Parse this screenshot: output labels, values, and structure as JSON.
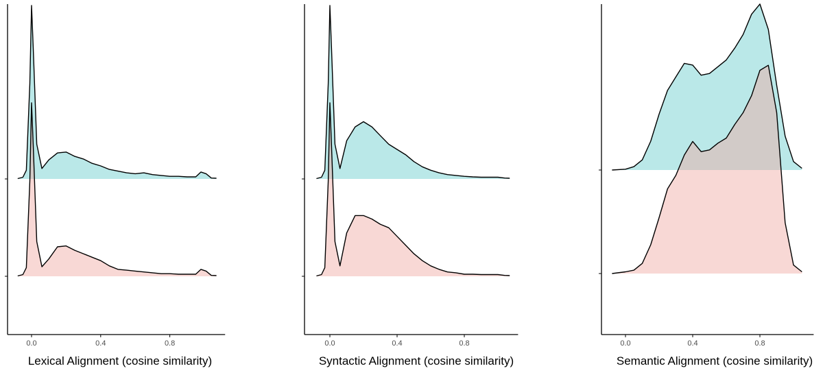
{
  "colors": {
    "top_ridge": "#66CCCC",
    "bottom_ridge": "#F0A8A2",
    "fill_opacity": 0.45
  },
  "chart_data": [
    {
      "type": "area",
      "subtype": "ridgeline-density",
      "xlabel": "Lexical Alignment (cosine similarity)",
      "xticks": [
        0.0,
        0.4,
        0.8
      ],
      "xtick_labels": [
        "0.0",
        "0.4",
        "0.8"
      ],
      "xlim": [
        -0.14,
        1.12
      ],
      "y_tick_labels": [
        "",
        ""
      ],
      "grid": false,
      "legend": "none",
      "series": [
        {
          "color": "#66CCCC",
          "points": [
            [
              -0.08,
              0.002
            ],
            [
              -0.05,
              0.01
            ],
            [
              -0.03,
              0.05
            ],
            [
              -0.01,
              0.55
            ],
            [
              0.0,
              1.0
            ],
            [
              0.01,
              0.75
            ],
            [
              0.03,
              0.2
            ],
            [
              0.06,
              0.06
            ],
            [
              0.1,
              0.11
            ],
            [
              0.15,
              0.15
            ],
            [
              0.2,
              0.155
            ],
            [
              0.25,
              0.13
            ],
            [
              0.3,
              0.115
            ],
            [
              0.35,
              0.09
            ],
            [
              0.4,
              0.075
            ],
            [
              0.45,
              0.055
            ],
            [
              0.5,
              0.045
            ],
            [
              0.55,
              0.035
            ],
            [
              0.6,
              0.03
            ],
            [
              0.65,
              0.035
            ],
            [
              0.7,
              0.025
            ],
            [
              0.75,
              0.02
            ],
            [
              0.8,
              0.015
            ],
            [
              0.85,
              0.015
            ],
            [
              0.9,
              0.012
            ],
            [
              0.95,
              0.012
            ],
            [
              0.98,
              0.04
            ],
            [
              1.01,
              0.03
            ],
            [
              1.04,
              0.005
            ],
            [
              1.07,
              0.004
            ]
          ]
        },
        {
          "color": "#F0A8A2",
          "points": [
            [
              -0.08,
              0.002
            ],
            [
              -0.05,
              0.01
            ],
            [
              -0.03,
              0.05
            ],
            [
              -0.01,
              0.55
            ],
            [
              0.0,
              1.0
            ],
            [
              0.01,
              0.75
            ],
            [
              0.03,
              0.2
            ],
            [
              0.06,
              0.055
            ],
            [
              0.1,
              0.1
            ],
            [
              0.15,
              0.17
            ],
            [
              0.2,
              0.175
            ],
            [
              0.25,
              0.15
            ],
            [
              0.3,
              0.13
            ],
            [
              0.35,
              0.11
            ],
            [
              0.4,
              0.09
            ],
            [
              0.45,
              0.06
            ],
            [
              0.5,
              0.04
            ],
            [
              0.55,
              0.035
            ],
            [
              0.6,
              0.03
            ],
            [
              0.65,
              0.025
            ],
            [
              0.7,
              0.02
            ],
            [
              0.75,
              0.015
            ],
            [
              0.8,
              0.015
            ],
            [
              0.85,
              0.012
            ],
            [
              0.9,
              0.012
            ],
            [
              0.95,
              0.012
            ],
            [
              0.98,
              0.04
            ],
            [
              1.01,
              0.03
            ],
            [
              1.04,
              0.005
            ],
            [
              1.07,
              0.004
            ]
          ]
        }
      ]
    },
    {
      "type": "area",
      "subtype": "ridgeline-density",
      "xlabel": "Syntactic Alignment (cosine similarity)",
      "xticks": [
        0.0,
        0.4,
        0.8
      ],
      "xtick_labels": [
        "0.0",
        "0.4",
        "0.8"
      ],
      "xlim": [
        -0.14,
        1.12
      ],
      "y_tick_labels": [
        "",
        ""
      ],
      "grid": false,
      "legend": "none",
      "series": [
        {
          "color": "#66CCCC",
          "points": [
            [
              -0.08,
              0.002
            ],
            [
              -0.05,
              0.01
            ],
            [
              -0.03,
              0.05
            ],
            [
              -0.01,
              0.55
            ],
            [
              0.0,
              1.0
            ],
            [
              0.01,
              0.75
            ],
            [
              0.03,
              0.2
            ],
            [
              0.06,
              0.06
            ],
            [
              0.1,
              0.22
            ],
            [
              0.15,
              0.3
            ],
            [
              0.2,
              0.33
            ],
            [
              0.25,
              0.3
            ],
            [
              0.3,
              0.25
            ],
            [
              0.35,
              0.2
            ],
            [
              0.4,
              0.17
            ],
            [
              0.45,
              0.14
            ],
            [
              0.5,
              0.1
            ],
            [
              0.55,
              0.07
            ],
            [
              0.6,
              0.05
            ],
            [
              0.65,
              0.035
            ],
            [
              0.7,
              0.025
            ],
            [
              0.75,
              0.02
            ],
            [
              0.8,
              0.015
            ],
            [
              0.85,
              0.012
            ],
            [
              0.9,
              0.01
            ],
            [
              0.95,
              0.01
            ],
            [
              1.0,
              0.01
            ],
            [
              1.04,
              0.005
            ],
            [
              1.07,
              0.004
            ]
          ]
        },
        {
          "color": "#F0A8A2",
          "points": [
            [
              -0.08,
              0.002
            ],
            [
              -0.05,
              0.01
            ],
            [
              -0.03,
              0.05
            ],
            [
              -0.01,
              0.55
            ],
            [
              0.0,
              1.0
            ],
            [
              0.01,
              0.75
            ],
            [
              0.03,
              0.2
            ],
            [
              0.06,
              0.06
            ],
            [
              0.1,
              0.25
            ],
            [
              0.15,
              0.35
            ],
            [
              0.2,
              0.35
            ],
            [
              0.25,
              0.33
            ],
            [
              0.3,
              0.3
            ],
            [
              0.35,
              0.28
            ],
            [
              0.4,
              0.23
            ],
            [
              0.45,
              0.18
            ],
            [
              0.5,
              0.13
            ],
            [
              0.55,
              0.09
            ],
            [
              0.6,
              0.06
            ],
            [
              0.65,
              0.04
            ],
            [
              0.7,
              0.025
            ],
            [
              0.75,
              0.02
            ],
            [
              0.8,
              0.012
            ],
            [
              0.85,
              0.012
            ],
            [
              0.9,
              0.01
            ],
            [
              0.95,
              0.01
            ],
            [
              1.0,
              0.01
            ],
            [
              1.04,
              0.005
            ],
            [
              1.07,
              0.004
            ]
          ]
        }
      ]
    },
    {
      "type": "area",
      "subtype": "ridgeline-density",
      "xlabel": "Semantic Alignment (cosine similarity)",
      "xticks": [
        0.0,
        0.4,
        0.8
      ],
      "xtick_labels": [
        "0.0",
        "0.4",
        "0.8"
      ],
      "xlim": [
        -0.14,
        1.12
      ],
      "y_tick_labels": [
        "",
        ""
      ],
      "grid": false,
      "legend": "none",
      "series": [
        {
          "color": "#66CCCC",
          "points": [
            [
              -0.08,
              0.0
            ],
            [
              0.0,
              0.005
            ],
            [
              0.05,
              0.02
            ],
            [
              0.1,
              0.06
            ],
            [
              0.15,
              0.17
            ],
            [
              0.2,
              0.33
            ],
            [
              0.25,
              0.47
            ],
            [
              0.3,
              0.55
            ],
            [
              0.35,
              0.63
            ],
            [
              0.4,
              0.62
            ],
            [
              0.45,
              0.56
            ],
            [
              0.5,
              0.57
            ],
            [
              0.55,
              0.61
            ],
            [
              0.6,
              0.65
            ],
            [
              0.65,
              0.72
            ],
            [
              0.7,
              0.8
            ],
            [
              0.75,
              0.92
            ],
            [
              0.8,
              0.98
            ],
            [
              0.85,
              0.83
            ],
            [
              0.9,
              0.5
            ],
            [
              0.95,
              0.2
            ],
            [
              1.0,
              0.05
            ],
            [
              1.05,
              0.01
            ]
          ]
        },
        {
          "color": "#F0A8A2",
          "points": [
            [
              -0.08,
              0.0
            ],
            [
              0.0,
              0.01
            ],
            [
              0.05,
              0.02
            ],
            [
              0.1,
              0.06
            ],
            [
              0.15,
              0.17
            ],
            [
              0.2,
              0.33
            ],
            [
              0.25,
              0.5
            ],
            [
              0.3,
              0.58
            ],
            [
              0.35,
              0.7
            ],
            [
              0.4,
              0.78
            ],
            [
              0.45,
              0.72
            ],
            [
              0.5,
              0.73
            ],
            [
              0.55,
              0.77
            ],
            [
              0.6,
              0.8
            ],
            [
              0.65,
              0.88
            ],
            [
              0.7,
              0.95
            ],
            [
              0.75,
              1.05
            ],
            [
              0.8,
              1.2
            ],
            [
              0.85,
              1.23
            ],
            [
              0.9,
              0.95
            ],
            [
              0.95,
              0.3
            ],
            [
              1.0,
              0.05
            ],
            [
              1.05,
              0.01
            ]
          ]
        }
      ]
    }
  ]
}
